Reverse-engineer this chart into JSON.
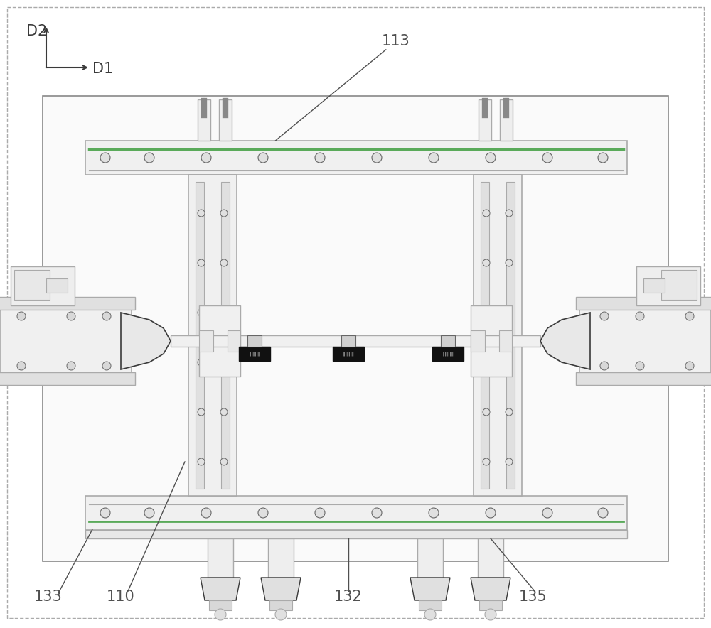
{
  "bg_color": "#ffffff",
  "lc": "#3a3a3a",
  "lg": "#aaaaaa",
  "gc": "#5aaa5a",
  "fig_width": 10.0,
  "fig_height": 8.84
}
